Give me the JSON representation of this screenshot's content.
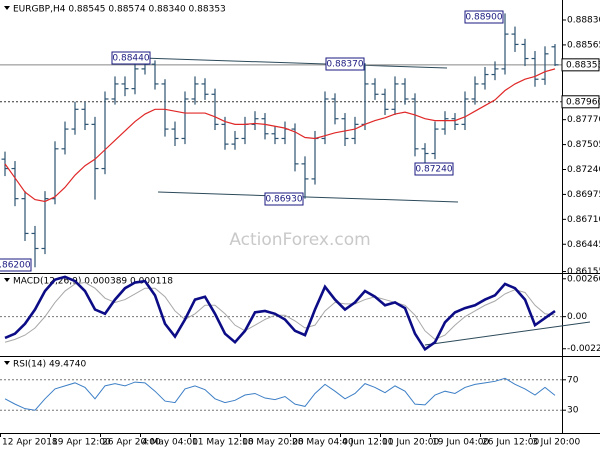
{
  "chart_data": [
    {
      "type": "ohlc",
      "title": "EURGBP,H4  0.88545 0.88574 0.88340 0.88353",
      "watermark": "ActionForex.com",
      "color": "#2c5372",
      "open": [
        0.8735,
        0.8725,
        0.8693,
        0.8656,
        0.864,
        0.8693,
        0.8746,
        0.8767,
        0.8788,
        0.8772,
        0.8725,
        0.8799,
        0.8815,
        0.881,
        0.8831,
        0.8836,
        0.8815,
        0.8767,
        0.8757,
        0.8799,
        0.8815,
        0.8804,
        0.8772,
        0.8751,
        0.8757,
        0.8772,
        0.8778,
        0.8762,
        0.8757,
        0.8767,
        0.873,
        0.8714,
        0.8757,
        0.8799,
        0.8778,
        0.8757,
        0.8772,
        0.8815,
        0.8804,
        0.8788,
        0.8815,
        0.8799,
        0.8746,
        0.8741,
        0.8767,
        0.8778,
        0.8772,
        0.8799,
        0.8815,
        0.8825,
        0.8831,
        0.8868,
        0.8857,
        0.8842,
        0.882,
        0.88545
      ],
      "high": [
        0.8743,
        0.8733,
        0.8701,
        0.8664,
        0.8701,
        0.8754,
        0.8775,
        0.8796,
        0.8796,
        0.878,
        0.8807,
        0.8823,
        0.8823,
        0.8844,
        0.8844,
        0.884,
        0.882,
        0.8775,
        0.8807,
        0.8823,
        0.8821,
        0.881,
        0.878,
        0.8765,
        0.878,
        0.8786,
        0.8784,
        0.877,
        0.8775,
        0.8773,
        0.8738,
        0.8765,
        0.8807,
        0.8805,
        0.8784,
        0.878,
        0.8837,
        0.8821,
        0.881,
        0.8823,
        0.8821,
        0.8805,
        0.8752,
        0.8775,
        0.8786,
        0.8784,
        0.8807,
        0.8823,
        0.8833,
        0.8839,
        0.889,
        0.8876,
        0.8863,
        0.885,
        0.8855,
        0.88574
      ],
      "low": [
        0.8717,
        0.8685,
        0.8648,
        0.862,
        0.8634,
        0.8687,
        0.874,
        0.8761,
        0.8766,
        0.8692,
        0.8719,
        0.8793,
        0.8802,
        0.8804,
        0.8825,
        0.8809,
        0.8759,
        0.8749,
        0.8751,
        0.8793,
        0.8798,
        0.8766,
        0.8745,
        0.8745,
        0.8751,
        0.8766,
        0.8756,
        0.8751,
        0.8751,
        0.8722,
        0.8693,
        0.8708,
        0.8751,
        0.8772,
        0.8749,
        0.8751,
        0.8766,
        0.8798,
        0.8782,
        0.8782,
        0.8793,
        0.8738,
        0.8724,
        0.8735,
        0.8761,
        0.8766,
        0.8766,
        0.8793,
        0.8809,
        0.8819,
        0.8825,
        0.8849,
        0.8834,
        0.8812,
        0.8814,
        0.8834
      ],
      "close": [
        0.8725,
        0.8693,
        0.8656,
        0.864,
        0.8693,
        0.8746,
        0.8767,
        0.8788,
        0.8772,
        0.8725,
        0.8799,
        0.8815,
        0.881,
        0.8831,
        0.8836,
        0.8815,
        0.8767,
        0.8757,
        0.8799,
        0.8815,
        0.8804,
        0.8772,
        0.8751,
        0.8757,
        0.8772,
        0.8778,
        0.8762,
        0.8757,
        0.8767,
        0.873,
        0.8714,
        0.8757,
        0.8799,
        0.8778,
        0.8757,
        0.8772,
        0.8815,
        0.8804,
        0.8788,
        0.8815,
        0.8799,
        0.8746,
        0.8741,
        0.8767,
        0.8778,
        0.8772,
        0.8799,
        0.8815,
        0.8825,
        0.8831,
        0.8868,
        0.8857,
        0.8842,
        0.882,
        0.8847,
        0.88353
      ],
      "overlay": {
        "color": "#e02828",
        "values": [
          0.873,
          0.8715,
          0.87,
          0.8692,
          0.869,
          0.8695,
          0.8705,
          0.8718,
          0.8728,
          0.8735,
          0.8745,
          0.8755,
          0.8765,
          0.8775,
          0.8783,
          0.8788,
          0.8788,
          0.8786,
          0.8784,
          0.8784,
          0.8784,
          0.878,
          0.8775,
          0.8772,
          0.8772,
          0.8773,
          0.8772,
          0.877,
          0.8768,
          0.8764,
          0.8758,
          0.8757,
          0.876,
          0.8763,
          0.8765,
          0.8767,
          0.8772,
          0.8776,
          0.8779,
          0.8783,
          0.8785,
          0.8782,
          0.8778,
          0.8776,
          0.8776,
          0.8776,
          0.878,
          0.8786,
          0.8792,
          0.8798,
          0.8808,
          0.8815,
          0.882,
          0.8823,
          0.8828,
          0.8831
        ]
      },
      "ylim": [
        0.8615,
        0.89
      ],
      "yticks": [
        {
          "value": 0.8883,
          "label": "0.88830"
        },
        {
          "value": 0.88565,
          "label": "0.88565"
        },
        {
          "value": 0.8777,
          "label": "0.87770"
        },
        {
          "value": 0.87505,
          "label": "0.87505"
        },
        {
          "value": 0.8724,
          "label": "0.87240"
        },
        {
          "value": 0.86975,
          "label": "0.86975"
        },
        {
          "value": 0.8671,
          "label": "0.86710"
        },
        {
          "value": 0.86445,
          "label": "0.86445"
        },
        {
          "value": 0.86155,
          "label": "0.86155"
        }
      ],
      "price_markers": [
        {
          "value": 0.88353,
          "label": "0.88353"
        },
        {
          "value": 0.8796,
          "label": "0.87960"
        }
      ],
      "annotations": [
        "0.88440",
        "0.88370",
        "0.88900",
        "0.87240",
        "0.86930",
        "0.86200"
      ]
    },
    {
      "type": "macd",
      "title": "MACD(12,26,9) 0.000389 0.000118",
      "lines": [
        {
          "color": "#0c0c86",
          "width": 2.6,
          "values": [
            -0.0015,
            -0.0012,
            -0.0005,
            0.0005,
            0.0018,
            0.0026,
            0.0028,
            0.0025,
            0.0018,
            0.0005,
            0.0002,
            0.0012,
            0.002,
            0.0024,
            0.0025,
            0.0015,
            -0.0005,
            -0.0014,
            -0.0002,
            0.0012,
            0.0014,
            0.0002,
            -0.0012,
            -0.0018,
            -0.001,
            0.0003,
            0.0004,
            0.0002,
            -0.0002,
            -0.001,
            -0.0013,
            0.0005,
            0.0021,
            0.0012,
            0.0005,
            0.001,
            0.0018,
            0.0014,
            0.0008,
            0.001,
            0.0006,
            -0.0012,
            -0.0023,
            -0.0018,
            -0.0004,
            0.0003,
            0.0006,
            0.0008,
            0.0012,
            0.0015,
            0.0023,
            0.002,
            0.0012,
            -0.0006,
            -0.0001,
            0.000389
          ]
        },
        {
          "color": "#a8a8a8",
          "width": 1,
          "values": [
            -0.0018,
            -0.0016,
            -0.0013,
            -0.0008,
            0.0,
            0.001,
            0.0018,
            0.0023,
            0.0024,
            0.002,
            0.0013,
            0.001,
            0.0012,
            0.0016,
            0.002,
            0.002,
            0.0014,
            0.0004,
            -0.0002,
            0.0002,
            0.0008,
            0.0008,
            0.0002,
            -0.0006,
            -0.001,
            -0.0006,
            -0.0002,
            0.0001,
            0.0001,
            -0.0003,
            -0.0008,
            -0.0006,
            0.0004,
            0.001,
            0.0009,
            0.0009,
            0.0012,
            0.0014,
            0.0012,
            0.001,
            0.0008,
            0.0001,
            -0.001,
            -0.0016,
            -0.0013,
            -0.0006,
            0.0,
            0.0004,
            0.0008,
            0.0011,
            0.0016,
            0.0019,
            0.0017,
            0.0008,
            0.0002,
            0.000118
          ]
        }
      ],
      "ylim": [
        -0.0027,
        0.003
      ],
      "yticks": [
        0.002663,
        {
          "value": 0,
          "label": "0.00"
        },
        -0.00226
      ]
    },
    {
      "type": "rsi",
      "title": "RSI(14) 49.4740",
      "color": "#3d7fc6",
      "values": [
        45,
        38,
        32,
        30,
        45,
        58,
        62,
        66,
        60,
        45,
        62,
        65,
        62,
        67,
        66,
        55,
        42,
        40,
        58,
        62,
        57,
        45,
        40,
        43,
        50,
        52,
        46,
        44,
        48,
        38,
        35,
        52,
        64,
        55,
        45,
        52,
        65,
        60,
        53,
        62,
        55,
        38,
        37,
        50,
        55,
        52,
        60,
        64,
        66,
        68,
        72,
        64,
        58,
        50,
        60,
        49.474
      ],
      "ylim": [
        0,
        100
      ],
      "yticks": [
        70,
        30
      ],
      "categories": [
        "12 Apr 2018",
        null,
        null,
        null,
        null,
        "19 Apr 12:00",
        null,
        null,
        null,
        null,
        "26 Apr 20:00",
        null,
        null,
        null,
        "4 May 04:00",
        null,
        null,
        null,
        null,
        "11 May 12:00",
        null,
        null,
        null,
        null,
        "18 May 20:00",
        null,
        null,
        null,
        null,
        "28 May 04:00",
        null,
        null,
        null,
        null,
        "4 Jun 12:00",
        null,
        null,
        null,
        "11 Jun 20:00",
        null,
        null,
        null,
        null,
        "19 Jun 04:00",
        null,
        null,
        null,
        null,
        "26 Jun 12:00",
        null,
        null,
        null,
        null,
        "3 Jul 20:00",
        null,
        null
      ]
    }
  ]
}
